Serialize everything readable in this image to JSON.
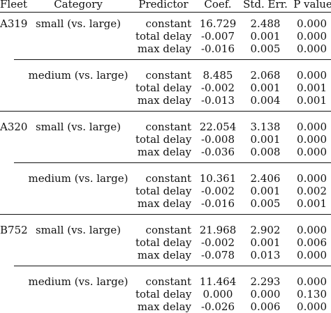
{
  "header": {
    "fleet": "Fleet",
    "category": "Category",
    "predictor": "Predictor",
    "coef": "Coef.",
    "std_err": "Std. Err.",
    "p_value": "P value"
  },
  "fleets": [
    {
      "name": "A319",
      "groups": [
        {
          "category": "small (vs. large)",
          "rows": [
            {
              "predictor": "constant",
              "coef": "16.729",
              "se": "2.488",
              "p": "0.000"
            },
            {
              "predictor": "total delay",
              "coef": "-0.007",
              "se": "0.001",
              "p": "0.000"
            },
            {
              "predictor": "max delay",
              "coef": "-0.016",
              "se": "0.005",
              "p": "0.000"
            }
          ]
        },
        {
          "category": "medium (vs. large)",
          "rows": [
            {
              "predictor": "constant",
              "coef": "8.485",
              "se": "2.068",
              "p": "0.000"
            },
            {
              "predictor": "total delay",
              "coef": "-0.002",
              "se": "0.001",
              "p": "0.001"
            },
            {
              "predictor": "max delay",
              "coef": "-0.013",
              "se": "0.004",
              "p": "0.001"
            }
          ]
        }
      ]
    },
    {
      "name": "A320",
      "groups": [
        {
          "category": "small (vs. large)",
          "rows": [
            {
              "predictor": "constant",
              "coef": "22.054",
              "se": "3.138",
              "p": "0.000"
            },
            {
              "predictor": "total delay",
              "coef": "-0.008",
              "se": "0.001",
              "p": "0.000"
            },
            {
              "predictor": "max delay",
              "coef": "-0.036",
              "se": "0.008",
              "p": "0.000"
            }
          ]
        },
        {
          "category": "medium (vs. large)",
          "rows": [
            {
              "predictor": "constant",
              "coef": "10.361",
              "se": "2.406",
              "p": "0.000"
            },
            {
              "predictor": "total delay",
              "coef": "-0.002",
              "se": "0.001",
              "p": "0.002"
            },
            {
              "predictor": "max delay",
              "coef": "-0.016",
              "se": "0.005",
              "p": "0.001"
            }
          ]
        }
      ]
    },
    {
      "name": "B752",
      "groups": [
        {
          "category": "small (vs. large)",
          "rows": [
            {
              "predictor": "constant",
              "coef": "21.968",
              "se": "2.902",
              "p": "0.000"
            },
            {
              "predictor": "total delay",
              "coef": "-0.002",
              "se": "0.001",
              "p": "0.006"
            },
            {
              "predictor": "max delay",
              "coef": "-0.078",
              "se": "0.013",
              "p": "0.000"
            }
          ]
        },
        {
          "category": "medium (vs. large)",
          "rows": [
            {
              "predictor": "constant",
              "coef": "11.464",
              "se": "2.293",
              "p": "0.000"
            },
            {
              "predictor": "total delay",
              "coef": "0.000",
              "se": "0.000",
              "p": "0.130"
            },
            {
              "predictor": "max delay",
              "coef": "-0.026",
              "se": "0.006",
              "p": "0.000"
            }
          ]
        }
      ]
    }
  ]
}
